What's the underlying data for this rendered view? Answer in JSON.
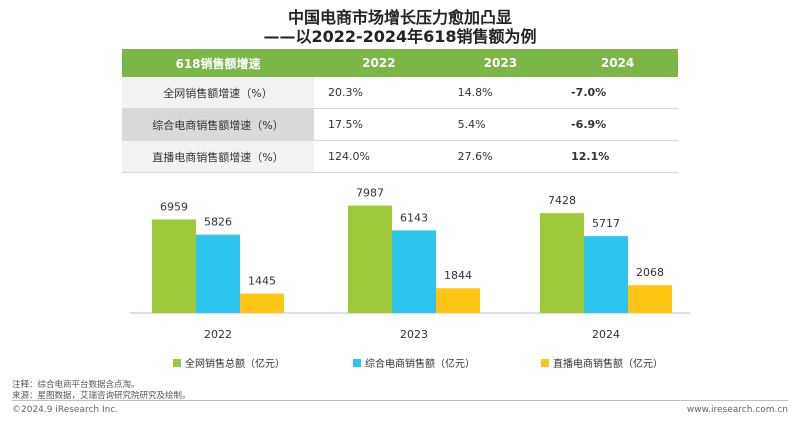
{
  "title_line1": "中国电商市场增长压力愈加凸显",
  "title_line2": "——以2022-2024年618销售额为例",
  "table": {
    "header": [
      "618销售额增速",
      "2022",
      "2023",
      "2024"
    ],
    "rows": [
      {
        "label": "全网销售额增速（%）",
        "v2022": "20.3%",
        "v2023": "14.8%",
        "v2024": "-7.0%"
      },
      {
        "label": "综合电商销售额增速（%）",
        "v2022": "17.5%",
        "v2023": "5.4%",
        "v2024": "-6.9%"
      },
      {
        "label": "直播电商销售额增速（%）",
        "v2022": "124.0%",
        "v2023": "27.6%",
        "v2024": "12.1%"
      }
    ]
  },
  "chart_data": {
    "type": "bar",
    "categories": [
      "2022",
      "2023",
      "2024"
    ],
    "series": [
      {
        "name": "全网销售总额（亿元）",
        "values": [
          6959,
          7987,
          7428
        ],
        "color": "#9dc93b"
      },
      {
        "name": "综合电商销售额（亿元）",
        "values": [
          5826,
          6143,
          5717
        ],
        "color": "#2cc3ec"
      },
      {
        "name": "直播电商销售额（亿元）",
        "values": [
          1445,
          1844,
          2068
        ],
        "color": "#ffc512"
      }
    ],
    "title": "",
    "xlabel": "",
    "ylabel": "",
    "ylim": [
      0,
      9000
    ],
    "legend_position": "bottom",
    "grid": false
  },
  "notes": {
    "note": "注释：综合电商平台数据含点淘。",
    "source": "来源：星图数据，艾瑞咨询研究院研究及绘制。"
  },
  "footer": {
    "copyright": "©2024.9 iResearch Inc.",
    "website": "www.iresearch.com.cn"
  }
}
